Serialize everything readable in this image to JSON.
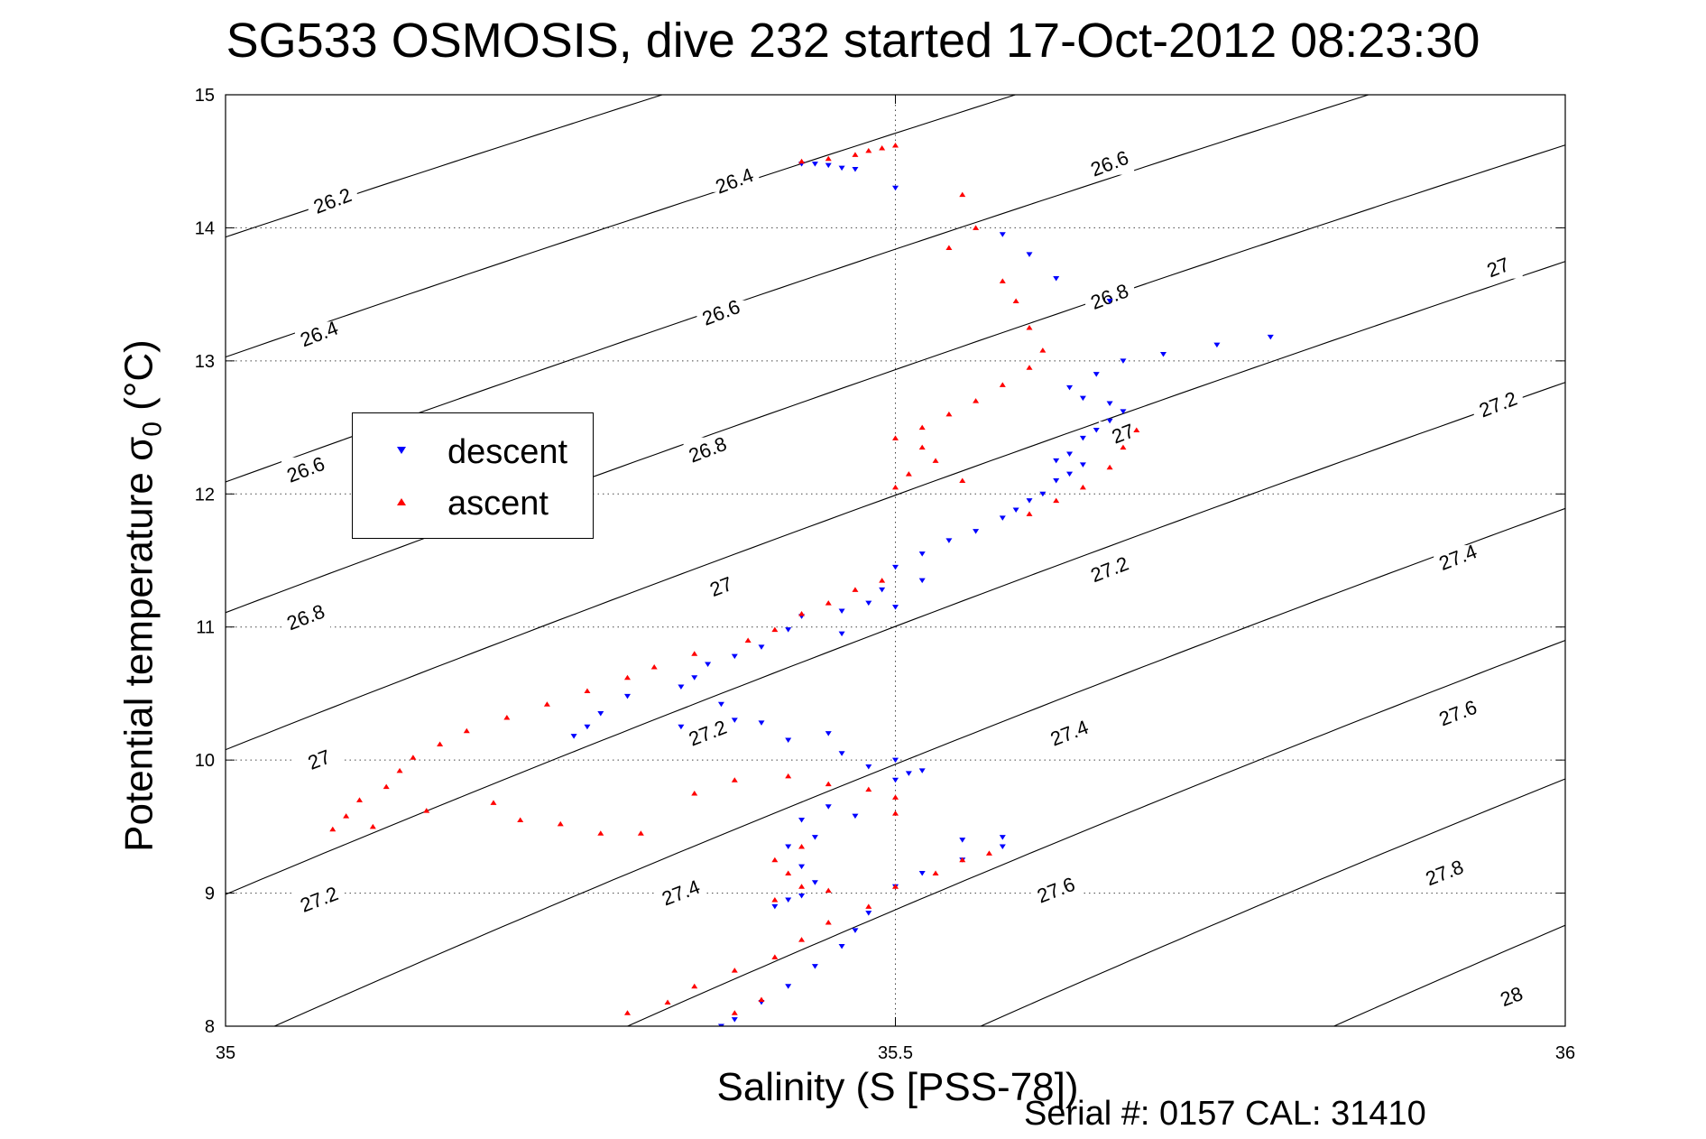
{
  "title": "SG533 OSMOSIS, dive 232 started 17-Oct-2012 08:23:30",
  "footer": "Serial #: 0157  CAL: 31410",
  "chart_data": {
    "type": "scatter",
    "title": "SG533 OSMOSIS, dive 232 started 17-Oct-2012 08:23:30",
    "xlabel": "Salinity (S [PSS-78])",
    "ylabel_main": "Potential temperature σ",
    "ylabel_sub": "0",
    "ylabel_tail": " (°C)",
    "xlim": [
      35,
      36
    ],
    "ylim": [
      8,
      15
    ],
    "xticks": [
      35,
      35.5,
      36
    ],
    "xtick_labels": [
      "35",
      "35.5",
      "36"
    ],
    "yticks": [
      8,
      9,
      10,
      11,
      12,
      13,
      14,
      15
    ],
    "ytick_labels": [
      "8",
      "9",
      "10",
      "11",
      "12",
      "13",
      "14",
      "15"
    ],
    "grid": "dotted at x=35.5 and integer y",
    "legend": {
      "placement": "left-middle",
      "entries": [
        {
          "name": "descent",
          "color": "#0000ff",
          "marker": "down-triangle"
        },
        {
          "name": "ascent",
          "color": "#ff0000",
          "marker": "up-triangle"
        }
      ]
    },
    "contours": {
      "levels": [
        26.2,
        26.4,
        26.6,
        26.8,
        27,
        27.2,
        27.4,
        27.6,
        27.8,
        28
      ],
      "labels": [
        {
          "text": "26.2",
          "x": 35.08,
          "y": 14.2
        },
        {
          "text": "26.4",
          "x": 35.07,
          "y": 13.2
        },
        {
          "text": "26.6",
          "x": 35.06,
          "y": 12.18
        },
        {
          "text": "26.8",
          "x": 35.06,
          "y": 11.07
        },
        {
          "text": "27",
          "x": 35.07,
          "y": 10.0
        },
        {
          "text": "27.2",
          "x": 35.07,
          "y": 8.95
        },
        {
          "text": "26.4",
          "x": 35.38,
          "y": 14.35
        },
        {
          "text": "26.6",
          "x": 35.37,
          "y": 13.36
        },
        {
          "text": "26.8",
          "x": 35.36,
          "y": 12.33
        },
        {
          "text": "27",
          "x": 35.37,
          "y": 11.3
        },
        {
          "text": "27.2",
          "x": 35.36,
          "y": 10.2
        },
        {
          "text": "27.4",
          "x": 35.34,
          "y": 9.0
        },
        {
          "text": "26.6",
          "x": 35.66,
          "y": 14.48
        },
        {
          "text": "26.8",
          "x": 35.66,
          "y": 13.48
        },
        {
          "text": "27",
          "x": 35.67,
          "y": 12.45
        },
        {
          "text": "27.2",
          "x": 35.66,
          "y": 11.43
        },
        {
          "text": "27.4",
          "x": 35.63,
          "y": 10.2
        },
        {
          "text": "27.6",
          "x": 35.62,
          "y": 9.02
        },
        {
          "text": "27",
          "x": 35.95,
          "y": 13.7
        },
        {
          "text": "27.2",
          "x": 35.95,
          "y": 12.67
        },
        {
          "text": "27.4",
          "x": 35.92,
          "y": 11.52
        },
        {
          "text": "27.6",
          "x": 35.92,
          "y": 10.35
        },
        {
          "text": "27.8",
          "x": 35.91,
          "y": 9.15
        },
        {
          "text": "28",
          "x": 35.96,
          "y": 8.22
        }
      ]
    },
    "series": [
      {
        "name": "descent",
        "color": "#0000ff",
        "marker": "v",
        "points": [
          [
            35.43,
            14.48
          ],
          [
            35.44,
            14.48
          ],
          [
            35.45,
            14.47
          ],
          [
            35.46,
            14.45
          ],
          [
            35.47,
            14.44
          ],
          [
            35.5,
            14.3
          ],
          [
            35.58,
            13.95
          ],
          [
            35.6,
            13.8
          ],
          [
            35.62,
            13.62
          ],
          [
            35.66,
            13.45
          ],
          [
            35.78,
            13.18
          ],
          [
            35.74,
            13.12
          ],
          [
            35.7,
            13.05
          ],
          [
            35.67,
            13.0
          ],
          [
            35.65,
            12.9
          ],
          [
            35.63,
            12.8
          ],
          [
            35.64,
            12.72
          ],
          [
            35.66,
            12.68
          ],
          [
            35.67,
            12.62
          ],
          [
            35.66,
            12.55
          ],
          [
            35.65,
            12.48
          ],
          [
            35.64,
            12.42
          ],
          [
            35.63,
            12.3
          ],
          [
            35.62,
            12.25
          ],
          [
            35.64,
            12.22
          ],
          [
            35.63,
            12.15
          ],
          [
            35.62,
            12.1
          ],
          [
            35.61,
            12.0
          ],
          [
            35.6,
            11.95
          ],
          [
            35.59,
            11.88
          ],
          [
            35.58,
            11.82
          ],
          [
            35.56,
            11.72
          ],
          [
            35.54,
            11.65
          ],
          [
            35.52,
            11.55
          ],
          [
            35.5,
            11.45
          ],
          [
            35.52,
            11.35
          ],
          [
            35.49,
            11.28
          ],
          [
            35.48,
            11.18
          ],
          [
            35.5,
            11.15
          ],
          [
            35.46,
            11.12
          ],
          [
            35.43,
            11.08
          ],
          [
            35.42,
            10.98
          ],
          [
            35.46,
            10.95
          ],
          [
            35.4,
            10.85
          ],
          [
            35.38,
            10.78
          ],
          [
            35.36,
            10.72
          ],
          [
            35.35,
            10.62
          ],
          [
            35.34,
            10.55
          ],
          [
            35.3,
            10.48
          ],
          [
            35.28,
            10.35
          ],
          [
            35.27,
            10.25
          ],
          [
            35.26,
            10.18
          ],
          [
            35.34,
            10.25
          ],
          [
            35.38,
            10.3
          ],
          [
            35.37,
            10.42
          ],
          [
            35.4,
            10.28
          ],
          [
            35.42,
            10.15
          ],
          [
            35.45,
            10.2
          ],
          [
            35.46,
            10.05
          ],
          [
            35.48,
            9.95
          ],
          [
            35.5,
            10.0
          ],
          [
            35.51,
            9.9
          ],
          [
            35.5,
            9.85
          ],
          [
            35.52,
            9.92
          ],
          [
            35.45,
            9.65
          ],
          [
            35.43,
            9.55
          ],
          [
            35.47,
            9.58
          ],
          [
            35.44,
            9.42
          ],
          [
            35.42,
            9.35
          ],
          [
            35.43,
            9.2
          ],
          [
            35.44,
            9.08
          ],
          [
            35.42,
            8.95
          ],
          [
            35.41,
            8.9
          ],
          [
            35.43,
            8.98
          ],
          [
            35.55,
            9.4
          ],
          [
            35.58,
            9.42
          ],
          [
            35.58,
            9.35
          ],
          [
            35.55,
            9.25
          ],
          [
            35.52,
            9.15
          ],
          [
            35.5,
            9.05
          ],
          [
            35.48,
            8.85
          ],
          [
            35.47,
            8.72
          ],
          [
            35.46,
            8.6
          ],
          [
            35.44,
            8.45
          ],
          [
            35.42,
            8.3
          ],
          [
            35.4,
            8.18
          ],
          [
            35.38,
            8.05
          ],
          [
            35.37,
            8.0
          ]
        ]
      },
      {
        "name": "ascent",
        "color": "#ff0000",
        "marker": "^",
        "points": [
          [
            35.47,
            14.55
          ],
          [
            35.49,
            14.6
          ],
          [
            35.5,
            14.62
          ],
          [
            35.48,
            14.58
          ],
          [
            35.45,
            14.52
          ],
          [
            35.43,
            14.5
          ],
          [
            35.55,
            14.25
          ],
          [
            35.56,
            14.0
          ],
          [
            35.54,
            13.85
          ],
          [
            35.58,
            13.6
          ],
          [
            35.59,
            13.45
          ],
          [
            35.6,
            13.25
          ],
          [
            35.61,
            13.08
          ],
          [
            35.6,
            12.95
          ],
          [
            35.58,
            12.82
          ],
          [
            35.56,
            12.7
          ],
          [
            35.54,
            12.6
          ],
          [
            35.52,
            12.5
          ],
          [
            35.5,
            12.42
          ],
          [
            35.52,
            12.35
          ],
          [
            35.53,
            12.25
          ],
          [
            35.51,
            12.15
          ],
          [
            35.5,
            12.05
          ],
          [
            35.55,
            12.1
          ],
          [
            35.6,
            11.85
          ],
          [
            35.62,
            11.95
          ],
          [
            35.64,
            12.05
          ],
          [
            35.66,
            12.2
          ],
          [
            35.67,
            12.35
          ],
          [
            35.68,
            12.48
          ],
          [
            35.49,
            11.35
          ],
          [
            35.47,
            11.28
          ],
          [
            35.45,
            11.18
          ],
          [
            35.43,
            11.1
          ],
          [
            35.41,
            10.98
          ],
          [
            35.39,
            10.9
          ],
          [
            35.35,
            10.8
          ],
          [
            35.32,
            10.7
          ],
          [
            35.3,
            10.62
          ],
          [
            35.27,
            10.52
          ],
          [
            35.24,
            10.42
          ],
          [
            35.21,
            10.32
          ],
          [
            35.18,
            10.22
          ],
          [
            35.16,
            10.12
          ],
          [
            35.14,
            10.02
          ],
          [
            35.13,
            9.92
          ],
          [
            35.12,
            9.8
          ],
          [
            35.1,
            9.7
          ],
          [
            35.09,
            9.58
          ],
          [
            35.08,
            9.48
          ],
          [
            35.11,
            9.5
          ],
          [
            35.15,
            9.62
          ],
          [
            35.2,
            9.68
          ],
          [
            35.22,
            9.55
          ],
          [
            35.25,
            9.52
          ],
          [
            35.28,
            9.45
          ],
          [
            35.31,
            9.45
          ],
          [
            35.35,
            9.75
          ],
          [
            35.38,
            9.85
          ],
          [
            35.42,
            9.88
          ],
          [
            35.45,
            9.82
          ],
          [
            35.48,
            9.78
          ],
          [
            35.5,
            9.72
          ],
          [
            35.5,
            9.6
          ],
          [
            35.43,
            9.35
          ],
          [
            35.41,
            9.25
          ],
          [
            35.42,
            9.15
          ],
          [
            35.43,
            9.05
          ],
          [
            35.41,
            8.95
          ],
          [
            35.45,
            9.02
          ],
          [
            35.55,
            9.25
          ],
          [
            35.57,
            9.3
          ],
          [
            35.53,
            9.15
          ],
          [
            35.5,
            9.05
          ],
          [
            35.48,
            8.9
          ],
          [
            35.45,
            8.78
          ],
          [
            35.43,
            8.65
          ],
          [
            35.41,
            8.52
          ],
          [
            35.38,
            8.42
          ],
          [
            35.35,
            8.3
          ],
          [
            35.33,
            8.18
          ],
          [
            35.3,
            8.1
          ],
          [
            35.38,
            8.1
          ],
          [
            35.4,
            8.2
          ]
        ]
      }
    ]
  }
}
